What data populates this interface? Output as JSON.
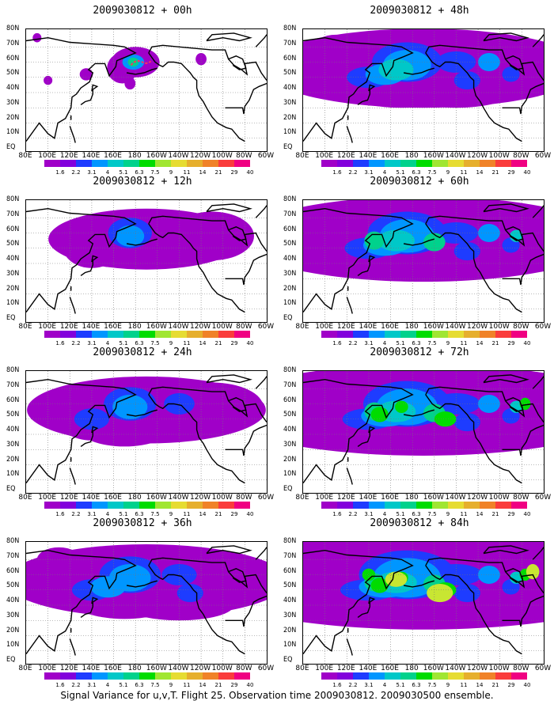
{
  "panels": [
    {
      "id": "p00",
      "title": "2009030812 + 00h",
      "intensity": 0
    },
    {
      "id": "p48",
      "title": "2009030812 + 48h",
      "intensity": 4
    },
    {
      "id": "p12",
      "title": "2009030812 + 12h",
      "intensity": 1
    },
    {
      "id": "p60",
      "title": "2009030812 + 60h",
      "intensity": 5
    },
    {
      "id": "p24",
      "title": "2009030812 + 24h",
      "intensity": 2
    },
    {
      "id": "p72",
      "title": "2009030812 + 72h",
      "intensity": 6
    },
    {
      "id": "p36",
      "title": "2009030812 + 36h",
      "intensity": 3
    },
    {
      "id": "p84",
      "title": "2009030812 + 84h",
      "intensity": 7
    }
  ],
  "lat_labels": [
    "80N",
    "70N",
    "60N",
    "50N",
    "40N",
    "30N",
    "20N",
    "10N",
    "EQ"
  ],
  "lon_labels": [
    "80E",
    "100E",
    "120E",
    "140E",
    "160E",
    "180",
    "160W",
    "140W",
    "120W",
    "100W",
    "80W",
    "60W"
  ],
  "colorbar": {
    "labels": [
      "1.6",
      "2.2",
      "3.1",
      "4",
      "5.1",
      "6.3",
      "7.5",
      "9",
      "11",
      "14",
      "21",
      "29",
      "40"
    ],
    "colors": [
      "#a000c8",
      "#8200dc",
      "#1e3cff",
      "#0096ff",
      "#00c8c8",
      "#00d28c",
      "#00dc00",
      "#a0e632",
      "#e6dc32",
      "#e6af2d",
      "#f08228",
      "#fa3c3c",
      "#f00082"
    ]
  },
  "footer": "Signal Variance for u,v,T. Flight 25. Observation time 2009030812. 2009030500 ensemble."
}
